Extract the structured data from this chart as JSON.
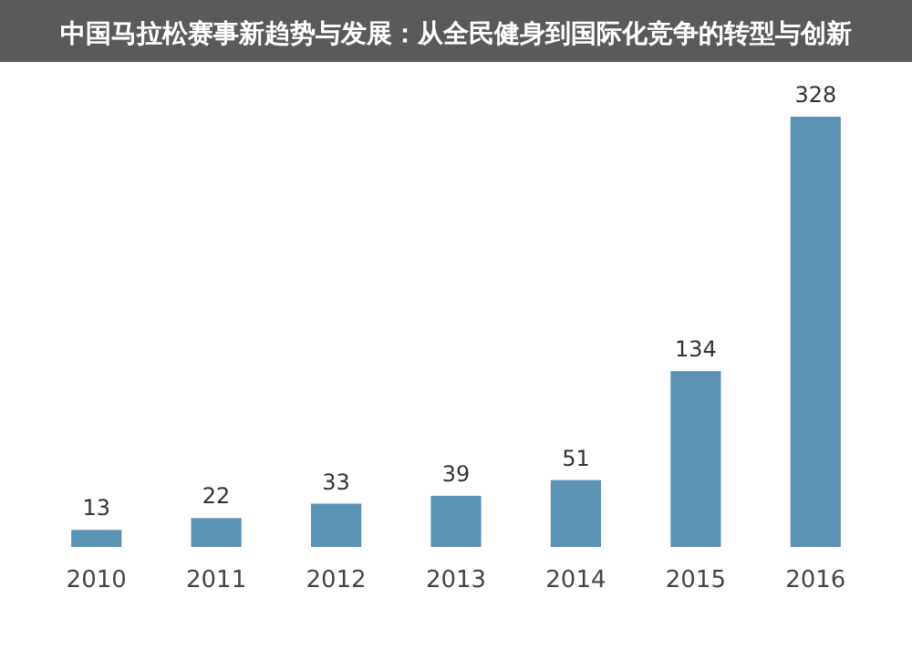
{
  "chart_data": {
    "type": "bar",
    "title": "中国马拉松赛事新趋势与发展：从全民健身到国际化竞争的转型与创新",
    "categories": [
      "2010",
      "2011",
      "2012",
      "2013",
      "2014",
      "2015",
      "2016"
    ],
    "values": [
      13,
      22,
      33,
      39,
      51,
      134,
      328
    ],
    "color": "#5b93b5",
    "data_labels": true
  }
}
